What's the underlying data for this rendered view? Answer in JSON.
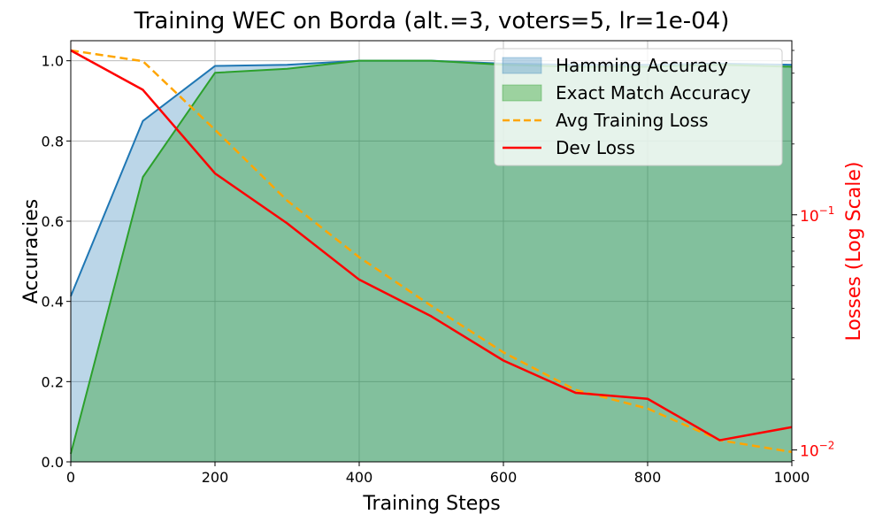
{
  "chart_data": {
    "type": "line",
    "title": "Training WEC on Borda (alt.=3, voters=5, lr=1e-04)",
    "xlabel": "Training Steps",
    "ylabel_left": "Accuracies",
    "ylabel_right": "Losses (Log Scale)",
    "x": [
      0,
      100,
      200,
      300,
      400,
      500,
      600,
      700,
      800,
      900,
      1000
    ],
    "xlim": [
      0,
      1000
    ],
    "ylim_left": [
      0,
      1.05
    ],
    "ylim_right": [
      0.0089,
      0.55
    ],
    "right_scale": "log",
    "grid": true,
    "legend_position": "top-right",
    "x_ticks": [
      "0",
      "200",
      "400",
      "600",
      "800",
      "1000"
    ],
    "y_left_ticks": [
      "0.0",
      "0.2",
      "0.4",
      "0.6",
      "0.8",
      "1.0"
    ],
    "y_right_ticks": [
      {
        "base": "10",
        "exp": "−1",
        "value": 0.1
      },
      {
        "base": "10",
        "exp": "−2",
        "value": 0.01
      }
    ],
    "series": [
      {
        "name": "Hamming Accuracy",
        "axis": "left",
        "style": "area",
        "color": "#1f77b4",
        "values": [
          0.413,
          0.85,
          0.987,
          0.99,
          1.0,
          1.0,
          0.993,
          0.99,
          0.99,
          0.993,
          0.99
        ]
      },
      {
        "name": "Exact Match Accuracy",
        "axis": "left",
        "style": "area",
        "color": "#2ca02c",
        "values": [
          0.02,
          0.71,
          0.97,
          0.98,
          1.0,
          1.0,
          0.99,
          0.985,
          0.985,
          0.99,
          0.985
        ]
      },
      {
        "name": "Avg Training Loss",
        "axis": "right",
        "style": "dashed",
        "color": "#ffa500",
        "values": [
          0.5,
          0.45,
          0.23,
          0.115,
          0.066,
          0.041,
          0.026,
          0.018,
          0.015,
          0.011,
          0.0098
        ]
      },
      {
        "name": "Dev Loss",
        "axis": "right",
        "style": "solid",
        "color": "#ff0000",
        "values": [
          0.5,
          0.34,
          0.15,
          0.092,
          0.053,
          0.037,
          0.024,
          0.0175,
          0.0165,
          0.011,
          0.0125
        ]
      }
    ]
  }
}
